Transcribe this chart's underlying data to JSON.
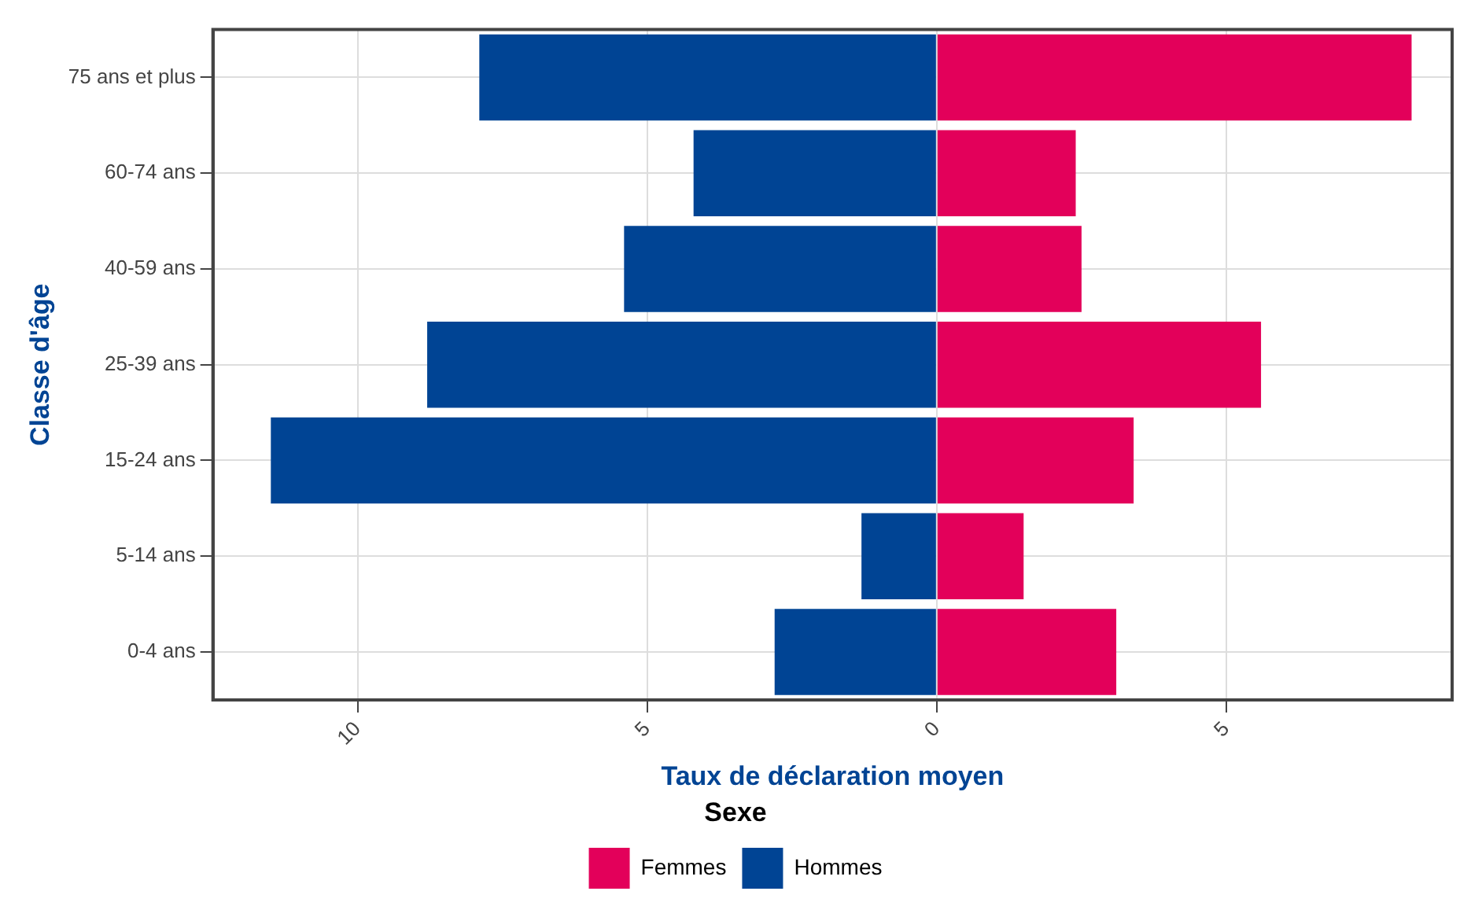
{
  "chart_data": {
    "type": "bar",
    "orientation": "horizontal",
    "stacked": true,
    "xlabel": "Taux de déclaration moyen",
    "ylabel": "Classe d'âge",
    "legend_title": "Sexe",
    "legend": "bottom",
    "grid": true,
    "categories": [
      "75 ans et plus",
      "60-74 ans",
      "40-59 ans",
      "25-39 ans",
      "15-24 ans",
      "5-14 ans",
      "0-4 ans"
    ],
    "series": [
      {
        "name": "Femmes",
        "color": "#e3005a",
        "values": [
          8.2,
          2.4,
          2.5,
          5.6,
          3.4,
          1.5,
          3.1
        ]
      },
      {
        "name": "Hommes",
        "color": "#004494",
        "values": [
          -7.9,
          -4.2,
          -5.4,
          -8.8,
          -11.5,
          -1.3,
          -2.8
        ]
      }
    ],
    "xlim": [
      -12.5,
      8.9
    ],
    "xticks": [
      {
        "value": -10,
        "label": "10"
      },
      {
        "value": -5,
        "label": "5"
      },
      0,
      5
    ]
  }
}
